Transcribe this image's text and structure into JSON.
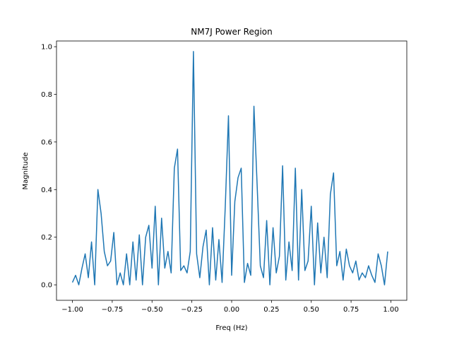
{
  "chart_data": {
    "type": "line",
    "title": "NM7J Power Region",
    "xlabel": "Freq (Hz)",
    "ylabel": "Magnitude",
    "x": [
      -1.0,
      -0.98,
      -0.96,
      -0.94,
      -0.92,
      -0.9,
      -0.88,
      -0.86,
      -0.84,
      -0.82,
      -0.8,
      -0.78,
      -0.76,
      -0.74,
      -0.72,
      -0.7,
      -0.68,
      -0.66,
      -0.64,
      -0.62,
      -0.6,
      -0.58,
      -0.56,
      -0.54,
      -0.52,
      -0.5,
      -0.48,
      -0.46,
      -0.44,
      -0.42,
      -0.4,
      -0.38,
      -0.36,
      -0.34,
      -0.32,
      -0.3,
      -0.28,
      -0.26,
      -0.24,
      -0.22,
      -0.2,
      -0.18,
      -0.16,
      -0.14,
      -0.12,
      -0.1,
      -0.08,
      -0.06,
      -0.04,
      -0.02,
      0.0,
      0.02,
      0.04,
      0.06,
      0.08,
      0.1,
      0.12,
      0.14,
      0.16,
      0.18,
      0.2,
      0.22,
      0.24,
      0.26,
      0.28,
      0.3,
      0.32,
      0.34,
      0.36,
      0.38,
      0.4,
      0.42,
      0.44,
      0.46,
      0.48,
      0.5,
      0.52,
      0.54,
      0.56,
      0.58,
      0.6,
      0.62,
      0.64,
      0.66,
      0.68,
      0.7,
      0.72,
      0.74,
      0.76,
      0.78,
      0.8,
      0.82,
      0.84,
      0.86,
      0.88,
      0.9,
      0.92,
      0.94,
      0.96,
      0.98
    ],
    "series": [
      {
        "color": "#1f77b4",
        "values": [
          0.01,
          0.04,
          0,
          0.07,
          0.13,
          0.03,
          0.18,
          0,
          0.4,
          0.3,
          0.14,
          0.08,
          0.1,
          0.22,
          0,
          0.05,
          0,
          0.13,
          0,
          0.18,
          0.02,
          0.21,
          0,
          0.2,
          0.25,
          0.07,
          0.33,
          0,
          0.28,
          0.07,
          0.14,
          0.05,
          0.49,
          0.57,
          0.06,
          0.08,
          0.05,
          0.14,
          0.98,
          0.13,
          0.03,
          0.16,
          0.23,
          0,
          0.24,
          0.02,
          0.19,
          0.01,
          0.33,
          0.71,
          0.04,
          0.35,
          0.45,
          0.49,
          0.01,
          0.09,
          0.04,
          0.75,
          0.42,
          0.08,
          0.03,
          0.27,
          0,
          0.24,
          0.05,
          0.12,
          0.5,
          0.02,
          0.18,
          0.06,
          0.49,
          0.02,
          0.4,
          0.06,
          0.1,
          0.33,
          0,
          0.26,
          0.05,
          0.2,
          0.03,
          0.38,
          0.47,
          0.08,
          0.14,
          0.02,
          0.15,
          0.08,
          0.05,
          0.1,
          0.02,
          0.05,
          0.03,
          0.08,
          0.04,
          0.01,
          0.13,
          0.08,
          0,
          0.14
        ]
      }
    ],
    "xlim": [
      -1.1,
      1.1
    ],
    "ylim": [
      -0.065,
      1.024
    ],
    "xticks": [
      {
        "value": -1,
        "label": "−1.00"
      },
      {
        "value": -0.75,
        "label": "−0.75"
      },
      {
        "value": -0.5,
        "label": "−0.50"
      },
      {
        "value": -0.25,
        "label": "−0.25"
      },
      {
        "value": 0,
        "label": "0.00"
      },
      0.25,
      {
        "value": 0.5,
        "label": "0.50"
      },
      0.75,
      {
        "value": 1,
        "label": "1.00"
      }
    ],
    "yticks": [
      {
        "value": 0,
        "label": "0.0"
      },
      0.2,
      0.4,
      0.6,
      0.8,
      {
        "value": 1,
        "label": "1.0"
      }
    ]
  }
}
